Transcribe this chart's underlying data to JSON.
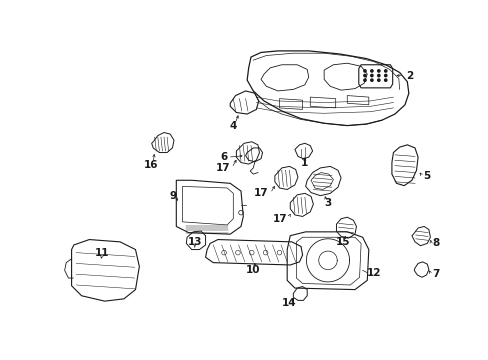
{
  "bg_color": "#ffffff",
  "line_color": "#1a1a1a",
  "text_color": "#000000",
  "fig_width": 4.89,
  "fig_height": 3.6,
  "dpi": 100,
  "label_fontsize": 7.5
}
